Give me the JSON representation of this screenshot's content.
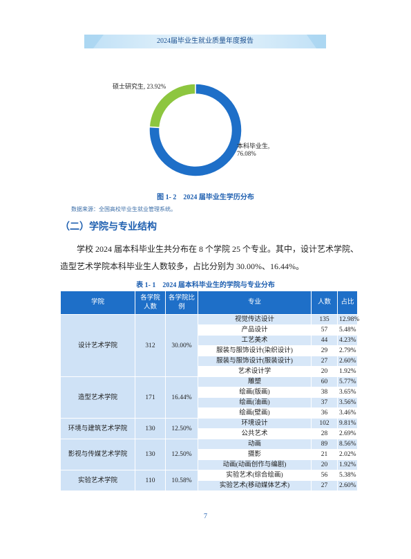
{
  "header": {
    "title": "2024届毕业生就业质量年度报告"
  },
  "chart_data": {
    "type": "donut",
    "values": [
      23.92,
      76.08
    ],
    "value_labels": [
      "硕士研究生, 23.92%",
      "本科毕业生, 76.08%"
    ],
    "colors": [
      "#8dc63f",
      "#1e6fc8"
    ]
  },
  "figure_caption": "图 1- 2　2024 届毕业生学历分布",
  "source": "数据来源：全国高校毕业生就业管理系统。",
  "section_heading": "（二）学院与专业结构",
  "paragraph": "学校 2024 届本科毕业生共分布在 8 个学院 25 个专业。其中，设计艺术学院、造型艺术学院本科毕业生人数较多，占比分别为 30.00%、16.44%。",
  "table_caption": "表 1- 1　2024 届本科毕业生的学院与专业分布",
  "table": {
    "header": [
      "学院",
      "各学院人数",
      "各学院比例",
      "专业",
      "人数",
      "占比"
    ],
    "colleges": [
      {
        "name": "设计艺术学院",
        "count": "312",
        "ratio": "30.00%",
        "majors": [
          [
            "视觉传达设计",
            "135",
            "12.98%"
          ],
          [
            "产品设计",
            "57",
            "5.48%"
          ],
          [
            "工艺美术",
            "44",
            "4.23%"
          ],
          [
            "服装与服饰设计(染织设计)",
            "29",
            "2.79%"
          ],
          [
            "服装与服饰设计(服装设计)",
            "27",
            "2.60%"
          ],
          [
            "艺术设计学",
            "20",
            "1.92%"
          ]
        ]
      },
      {
        "name": "造型艺术学院",
        "count": "171",
        "ratio": "16.44%",
        "majors": [
          [
            "雕塑",
            "60",
            "5.77%"
          ],
          [
            "绘画(版画)",
            "38",
            "3.65%"
          ],
          [
            "绘画(油画)",
            "37",
            "3.56%"
          ],
          [
            "绘画(壁画)",
            "36",
            "3.46%"
          ]
        ]
      },
      {
        "name": "环境与建筑艺术学院",
        "count": "130",
        "ratio": "12.50%",
        "majors": [
          [
            "环境设计",
            "102",
            "9.81%"
          ],
          [
            "公共艺术",
            "28",
            "2.69%"
          ]
        ]
      },
      {
        "name": "影视与传媒艺术学院",
        "count": "130",
        "ratio": "12.50%",
        "majors": [
          [
            "动画",
            "89",
            "8.56%"
          ],
          [
            "摄影",
            "21",
            "2.02%"
          ],
          [
            "动画(动画创作与编剧)",
            "20",
            "1.92%"
          ]
        ]
      },
      {
        "name": "实验艺术学院",
        "count": "110",
        "ratio": "10.58%",
        "majors": [
          [
            "实验艺术(综合绘画)",
            "56",
            "5.38%"
          ],
          [
            "实验艺术(移动媒体艺术)",
            "27",
            "2.60%"
          ]
        ]
      }
    ]
  },
  "page_number": "7"
}
